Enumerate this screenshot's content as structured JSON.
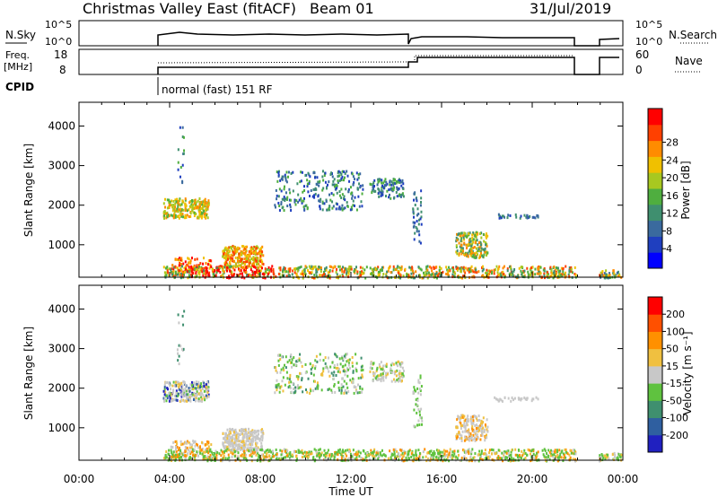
{
  "header": {
    "radar": "Christmas Valley East (fitACF)",
    "beam": "Beam 01",
    "date": "31/Jul/2019"
  },
  "top_panels": {
    "nsky_label": "N.Sky",
    "nsky_ticks": [
      "10^5",
      "10^0"
    ],
    "nsearch_label": "N.Search",
    "nsearch_ticks": [
      "10^5",
      "10^0"
    ],
    "freq_label": "Freq.",
    "freq_unit": "[MHz]",
    "freq_ticks": [
      "18",
      "8"
    ],
    "nave_label": "Nave",
    "nave_ticks": [
      "60",
      "0"
    ],
    "cpid_label": "CPID",
    "cpid_text": "normal (fast) 151 RF"
  },
  "chart_data": [
    {
      "type": "heatmap",
      "name": "power",
      "ylabel": "Slant Range [km]",
      "yticks": [
        "4000",
        "3000",
        "2000",
        "1000"
      ],
      "ylim": [
        180,
        4600
      ],
      "xlim": [
        0,
        24
      ],
      "colorbar_label": "Power [dB]",
      "colorbar_ticks": [
        "28",
        "24",
        "20",
        "16",
        "12",
        "8",
        "4"
      ],
      "colorbar_colors": [
        "#0000ff",
        "#1f3fbf",
        "#3a6a9e",
        "#3f8f6f",
        "#4fae3f",
        "#a8c820",
        "#f0c000",
        "#ff8c00",
        "#ff4000",
        "#ff0000"
      ]
    },
    {
      "type": "heatmap",
      "name": "velocity",
      "ylabel": "Slant Range [km]",
      "yticks": [
        "4000",
        "3000",
        "2000",
        "1000"
      ],
      "ylim": [
        180,
        4600
      ],
      "xlim": [
        0,
        24
      ],
      "xlabel": "Time UT",
      "xticks": [
        "00:00",
        "04:00",
        "08:00",
        "12:00",
        "16:00",
        "20:00",
        "00:00"
      ],
      "colorbar_label": "Velocity [m s⁻¹]",
      "colorbar_ticks": [
        "200",
        "100",
        "50",
        "15",
        "-15",
        "-50",
        "-100",
        "-200"
      ],
      "colorbar_colors": [
        "#2020c0",
        "#2f5fa0",
        "#3f8f6f",
        "#5fc23f",
        "#c8c8c8",
        "#f0c040",
        "#ff9000",
        "#ff5000",
        "#ff0000"
      ]
    }
  ]
}
